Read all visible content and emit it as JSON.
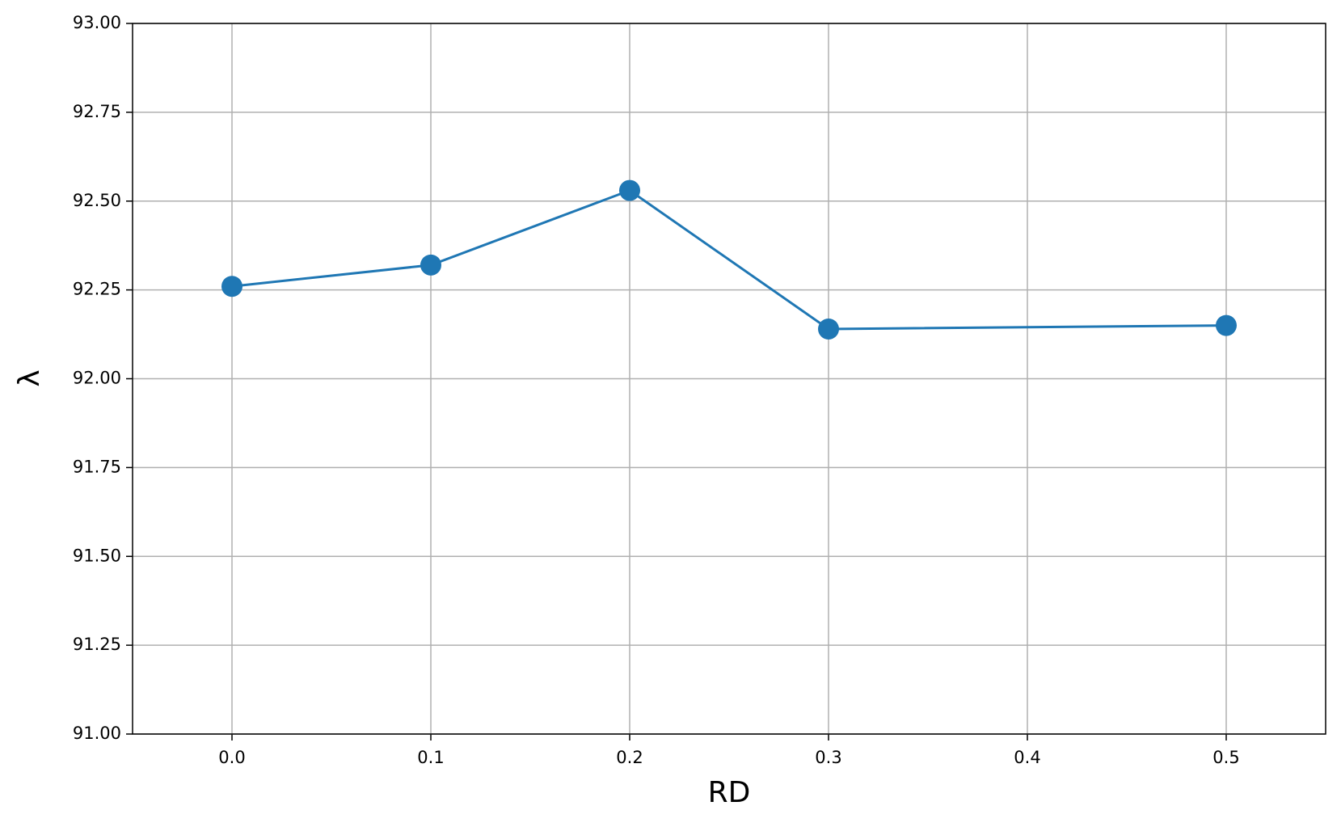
{
  "chart_data": {
    "type": "line",
    "x_label": "RD",
    "y_label": "λ",
    "x": [
      0.0,
      0.1,
      0.2,
      0.3,
      0.5
    ],
    "series": [
      {
        "color": "#1f77b4",
        "values": [
          92.26,
          92.32,
          92.53,
          92.14,
          92.15
        ]
      }
    ],
    "xlim": [
      -0.05,
      0.55
    ],
    "xticks": [
      {
        "value": 0,
        "label": "0.0"
      },
      0.1,
      0.2,
      0.3,
      0.4,
      0.5
    ],
    "ylim": [
      91,
      93
    ],
    "yticks": [
      {
        "value": 91,
        "label": "91.00"
      },
      {
        "value": 91.25,
        "label": "91.25"
      },
      {
        "value": 91.5,
        "label": "91.50"
      },
      {
        "value": 91.75,
        "label": "91.75"
      },
      {
        "value": 92,
        "label": "92.00"
      },
      {
        "value": 92.25,
        "label": "92.25"
      },
      {
        "value": 92.5,
        "label": "92.50"
      },
      {
        "value": 92.75,
        "label": "92.75"
      },
      {
        "value": 93,
        "label": "93.00"
      }
    ],
    "grid": true,
    "marker": "circle"
  }
}
